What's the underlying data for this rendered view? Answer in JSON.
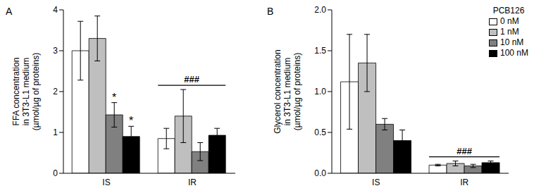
{
  "chart_data": [
    {
      "type": "bar",
      "title": "A",
      "y_label": [
        "FFA concentration",
        "in 3T3-L1 medium",
        "(µmol/µg of proteins)"
      ],
      "categories": [
        "IS",
        "IR"
      ],
      "series": [
        {
          "name": "0 nM",
          "color": "#ffffff",
          "values": [
            3.0,
            0.85
          ],
          "errors": [
            0.72,
            0.25
          ]
        },
        {
          "name": "1 nM",
          "color": "#bfbfbf",
          "values": [
            3.3,
            1.4
          ],
          "errors": [
            0.55,
            0.65
          ]
        },
        {
          "name": "10 nM",
          "color": "#808080",
          "values": [
            1.43,
            0.53
          ],
          "errors": [
            0.3,
            0.22
          ]
        },
        {
          "name": "100 nM",
          "color": "#000000",
          "values": [
            0.9,
            0.93
          ],
          "errors": [
            0.25,
            0.17
          ]
        }
      ],
      "ylim": [
        0,
        4
      ],
      "yticks": [
        0,
        1,
        2,
        3,
        4
      ],
      "annotations": [
        {
          "text": "*",
          "category": "IS",
          "series": "10 nM"
        },
        {
          "text": "*",
          "category": "IS",
          "series": "100 nM"
        },
        {
          "text": "###",
          "category": "IR"
        }
      ]
    },
    {
      "type": "bar",
      "title": "B",
      "y_label": [
        "Glycerol concentration",
        "in 3T3-L1 medium",
        "(µmol/µg of proteins)"
      ],
      "categories": [
        "IS",
        "IR"
      ],
      "series": [
        {
          "name": "0 nM",
          "color": "#ffffff",
          "values": [
            1.12,
            0.1
          ],
          "errors": [
            0.58,
            0.01
          ]
        },
        {
          "name": "1 nM",
          "color": "#bfbfbf",
          "values": [
            1.35,
            0.12
          ],
          "errors": [
            0.35,
            0.03
          ]
        },
        {
          "name": "10 nM",
          "color": "#808080",
          "values": [
            0.6,
            0.09
          ],
          "errors": [
            0.07,
            0.02
          ]
        },
        {
          "name": "100 nM",
          "color": "#000000",
          "values": [
            0.4,
            0.13
          ],
          "errors": [
            0.13,
            0.02
          ]
        }
      ],
      "ylim": [
        0,
        2
      ],
      "yticks": [
        {
          "value": 0,
          "label": "0.0"
        },
        {
          "value": 0.5,
          "label": "0.5"
        },
        {
          "value": 1,
          "label": "1.0"
        },
        {
          "value": 1.5,
          "label": "1.5"
        },
        {
          "value": 2,
          "label": "2.0"
        }
      ],
      "legend": "upper right",
      "legend_title": "PCB126",
      "annotations": [
        {
          "text": "###",
          "category": "IR"
        }
      ]
    }
  ]
}
